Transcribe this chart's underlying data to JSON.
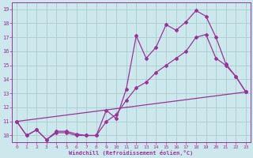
{
  "background_color": "#cce8ec",
  "grid_color": "#aacccc",
  "line_color": "#993399",
  "xlim": [
    -0.5,
    23.5
  ],
  "ylim": [
    9.5,
    19.5
  ],
  "xticks": [
    0,
    1,
    2,
    3,
    4,
    5,
    6,
    7,
    8,
    9,
    10,
    11,
    12,
    13,
    14,
    15,
    16,
    17,
    18,
    19,
    20,
    21,
    22,
    23
  ],
  "yticks": [
    10,
    11,
    12,
    13,
    14,
    15,
    16,
    17,
    18,
    19
  ],
  "xlabel": "Windchill (Refroidissement éolien,°C)",
  "line1_x": [
    0,
    1,
    2,
    3,
    4,
    5,
    6,
    7,
    8,
    9,
    10,
    11,
    12,
    13,
    14,
    15,
    16,
    17,
    18,
    19,
    20,
    21,
    22,
    23
  ],
  "line1_y": [
    11,
    10,
    10.4,
    9.7,
    10.3,
    10.3,
    10.1,
    10.0,
    10.0,
    11.8,
    11.2,
    13.3,
    17.1,
    15.5,
    16.3,
    17.9,
    17.5,
    18.1,
    18.9,
    18.5,
    17.0,
    15.1,
    14.2,
    13.1
  ],
  "line2_x": [
    0,
    1,
    2,
    3,
    4,
    5,
    6,
    7,
    8,
    9,
    10,
    11,
    12,
    13,
    14,
    15,
    16,
    17,
    18,
    19,
    20,
    21,
    22,
    23
  ],
  "line2_y": [
    11,
    10,
    10.4,
    9.7,
    10.2,
    10.2,
    10.0,
    10.0,
    10.0,
    11.0,
    11.5,
    12.5,
    13.4,
    13.8,
    14.5,
    15.0,
    15.5,
    16.0,
    17.0,
    17.2,
    15.5,
    15.0,
    14.2,
    13.1
  ],
  "line3_x": [
    0,
    23
  ],
  "line3_y": [
    11,
    13.1
  ],
  "marker": "D",
  "markersize": 2.0,
  "linewidth": 0.9
}
